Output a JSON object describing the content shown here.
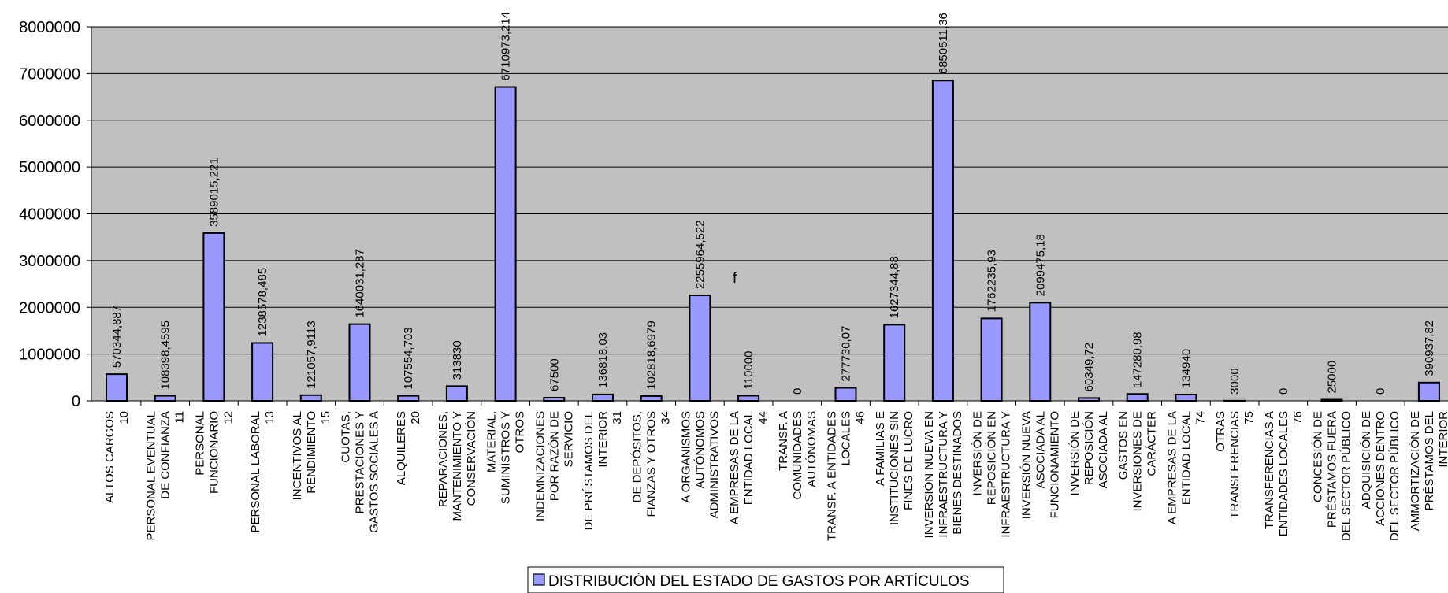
{
  "chart_data": {
    "type": "bar",
    "title": "",
    "xlabel": "",
    "ylabel": "",
    "ylim": [
      0,
      8000000
    ],
    "yticks": [
      "0",
      "1000000",
      "2000000",
      "3000000",
      "4000000",
      "5000000",
      "6000000",
      "7000000",
      "8000000"
    ],
    "grid": true,
    "legend_position": "bottom",
    "annotation": "f",
    "colors": {
      "plot_bg": "#c0c0c0",
      "bar": "#9999ff",
      "bar_stroke": "#000000",
      "grid": "#000000"
    },
    "categories": [
      [
        "ALTOS CARGOS",
        "10"
      ],
      [
        "PERSONAL EVENTUAL",
        "DE CONFIANZA",
        "11"
      ],
      [
        "PERSONAL",
        "FUNCIONARIO",
        "12"
      ],
      [
        "PERSONAL LABORAL",
        "13"
      ],
      [
        "INCENTIVOS AL",
        "RENDIMIENTO",
        "15"
      ],
      [
        "CUOTAS,",
        "PRESTACIONES Y",
        "GASTOS SOCIALES A"
      ],
      [
        "ALQUILERES",
        "20"
      ],
      [
        "REPARACIONES,",
        "MANTENIMIENTO Y",
        "CONSERVACIÓN"
      ],
      [
        "MATERIAL,",
        "SUMINISTROS Y",
        "OTROS"
      ],
      [
        "INDEMNIZACIONES",
        "POR RAZÓN DE",
        "SERVICIO"
      ],
      [
        "DE PRÉSTAMOS DEL",
        "INTERIOR",
        "31"
      ],
      [
        "DE DEPÓSITOS,",
        "FIANZAS Y OTROS",
        "34"
      ],
      [
        "A ORGANISMOS",
        "AUTÓNOMOS",
        "ADMINISTRATIVOS"
      ],
      [
        "A EMPRESAS DE LA",
        "ENTIDAD LOCAL",
        "44"
      ],
      [
        "TRANSF. A",
        "COMUNIDADES",
        "AUTÓNOMAS"
      ],
      [
        "TRANSF. A ENTIDADES",
        "LOCALES",
        "46"
      ],
      [
        "A FAMILIAS E",
        "INSTITUCIONES SIN",
        "FINES DE LUCRO"
      ],
      [
        "INVERSIÓN NUEVA EN",
        "INFRAESTRUCTURA Y",
        "BIENES DESTINADOS"
      ],
      [
        "INVERSIÓN DE",
        "REPOSICIÓN EN",
        "INFRAESTRUCTURA Y"
      ],
      [
        "INVERSIÓN NUEVA",
        "ASOCIADA AL",
        "FUNCIONAMIENTO"
      ],
      [
        "INVERSIÓN DE",
        "REPOSICIÓN",
        "ASOCIADA AL"
      ],
      [
        "GASTOS EN",
        "INVERSIONES DE",
        "CARÁCTER"
      ],
      [
        "A EMPRESAS DE LA",
        "ENTIDAD LOCAL",
        "74"
      ],
      [
        "OTRAS",
        "TRANSFERENCIAS",
        "75"
      ],
      [
        "TRANSFERENCIAS A",
        "ENTIDADES LOCALES",
        "76"
      ],
      [
        "CONCESIÓN DE",
        "PRÉSTAMOS FUERA",
        "DEL SECTOR PÚBLICO"
      ],
      [
        "ADQUISICIÓN DE",
        "ACCIONES DENTRO",
        "DEL SECTOR PÚBLICO"
      ],
      [
        "AMMORTIZACIÓN DE",
        "PRÉSTAMOS DEL",
        "INTERIOR"
      ]
    ],
    "values": [
      570344.887,
      108398.4595,
      3589015.221,
      1238578.485,
      121057.9113,
      1640031.287,
      107554.703,
      313830,
      6710973.214,
      67500,
      136818.03,
      102818.6979,
      2255964.522,
      110000,
      0,
      277730.07,
      1627344.88,
      6850511.36,
      1762235.93,
      2099475.18,
      60349.72,
      147280.98,
      134940,
      3000,
      0,
      25000,
      0,
      390937.82
    ],
    "data_labels": [
      "570344,887",
      "108398,4595",
      "3589015,221",
      "1238578,485",
      "121057,9113",
      "1640031,287",
      "107554,703",
      "313830",
      "6710973,214",
      "67500",
      "136818,03",
      "102818,6979",
      "2255964,522",
      "110000",
      "0",
      "277730,07",
      "1627344,88",
      "6850511,36",
      "1762235,93",
      "2099475,18",
      "60349,72",
      "147280,98",
      "134940",
      "3000",
      "0",
      "25000",
      "0",
      "390937,82"
    ],
    "series": [
      {
        "name": "DISTRIBUCIÓN DEL ESTADO DE GASTOS POR ARTÍCULOS"
      }
    ]
  }
}
